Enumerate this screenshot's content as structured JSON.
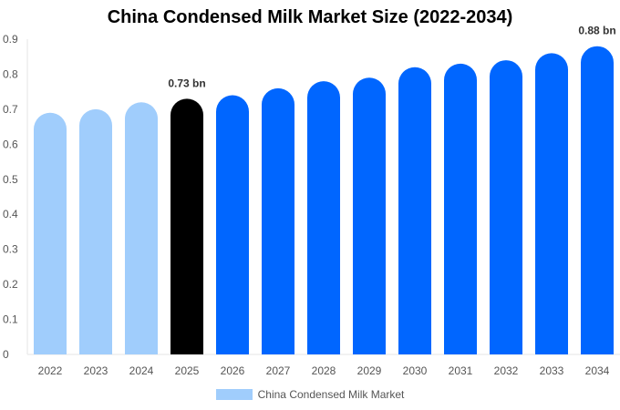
{
  "chart_data": {
    "type": "bar",
    "title": "China Condensed Milk Market Size (2022-2034)",
    "xlabel": "",
    "ylabel": "",
    "categories": [
      "2022",
      "2023",
      "2024",
      "2025",
      "2026",
      "2027",
      "2028",
      "2029",
      "2030",
      "2031",
      "2032",
      "2033",
      "2034"
    ],
    "series": [
      {
        "name": "China Condensed Milk Market",
        "values": [
          0.69,
          0.7,
          0.72,
          0.73,
          0.74,
          0.76,
          0.78,
          0.79,
          0.82,
          0.83,
          0.84,
          0.86,
          0.88
        ]
      }
    ],
    "ylim": [
      0,
      0.9
    ],
    "yticks": [
      "0",
      "0.1",
      "0.2",
      "0.3",
      "0.4",
      "0.5",
      "0.6",
      "0.7",
      "0.8",
      "0.9"
    ],
    "data_labels": [
      {
        "category": "2025",
        "text": "0.73 bn"
      },
      {
        "category": "2034",
        "text": "0.88 bn"
      }
    ],
    "colors": {
      "historical": "#a0cdfc",
      "current": "#000000",
      "forecast": "#0066ff"
    },
    "bar_color_groups": [
      "historical",
      "historical",
      "historical",
      "current",
      "forecast",
      "forecast",
      "forecast",
      "forecast",
      "forecast",
      "forecast",
      "forecast",
      "forecast",
      "forecast"
    ],
    "grid": false,
    "legend_position": "bottom"
  }
}
